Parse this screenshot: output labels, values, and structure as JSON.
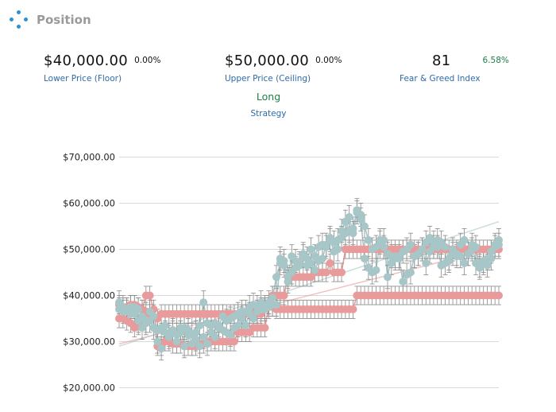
{
  "header": {
    "title": "Position",
    "icon": "four-dots-diamond-icon"
  },
  "metrics": {
    "floor": {
      "value": "$40,000.00",
      "change": "0.00%",
      "label": "Lower Price (Floor)"
    },
    "ceiling": {
      "value": "$50,000.00",
      "change": "0.00%",
      "label": "Upper Price (Ceiling)"
    },
    "fear_greed": {
      "value": "81",
      "change": "6.58%",
      "label": "Fear & Greed Index",
      "change_color": "#1c7f46"
    }
  },
  "strategy": {
    "value": "Long",
    "label": "Strategy",
    "value_color": "#1c7f46"
  },
  "chart_data": {
    "type": "line",
    "ylim": [
      19000,
      72000
    ],
    "yticks": [
      20000,
      30000,
      40000,
      50000,
      60000,
      70000
    ],
    "ytick_labels": [
      "$20,000.00",
      "$30,000.00",
      "$40,000.00",
      "$50,000.00",
      "$60,000.00",
      "$70,000.00"
    ],
    "grid": true,
    "x": [
      0,
      1,
      2,
      3,
      4,
      5,
      6,
      7,
      8,
      9,
      10,
      11,
      12,
      13,
      14,
      15,
      16,
      17,
      18,
      19,
      20,
      21,
      22,
      23,
      24,
      25,
      26,
      27,
      28,
      29,
      30,
      31,
      32,
      33,
      34,
      35,
      36,
      37,
      38,
      39,
      40,
      41,
      42,
      43,
      44,
      45,
      46,
      47,
      48,
      49,
      50,
      51,
      52,
      53,
      54,
      55,
      56,
      57,
      58,
      59,
      60,
      61,
      62,
      63,
      64,
      65,
      66,
      67,
      68,
      69,
      70,
      71,
      72,
      73,
      74,
      75,
      76,
      77,
      78,
      79,
      80,
      81,
      82,
      83,
      84,
      85,
      86,
      87,
      88,
      89,
      90,
      91,
      92,
      93,
      94,
      95,
      96,
      97,
      98,
      99
    ],
    "series": [
      {
        "color": "#e99a9a",
        "error": 2000,
        "values": [
          35000,
          35000,
          34500,
          34000,
          33000,
          33500,
          37000,
          40000,
          40000,
          37000,
          29000,
          29000,
          30000,
          30000,
          29500,
          29500,
          29500,
          29000,
          29000,
          29000,
          29000,
          29500,
          29500,
          30000,
          30000,
          30000,
          30000,
          30000,
          30000,
          30000,
          30000,
          32000,
          32000,
          32000,
          32000,
          33000,
          33000,
          33000,
          33000,
          37500,
          37500,
          37000,
          37000,
          37000,
          37000,
          37000,
          37000,
          37000,
          37000,
          37000,
          37000,
          37000,
          37000,
          37000,
          37000,
          37000,
          37000,
          37000,
          37000,
          37000,
          37000,
          37000,
          40000,
          40000,
          40000,
          40000,
          40000,
          40000,
          40000,
          40000,
          40000,
          40000,
          40000,
          40000,
          40000,
          40000,
          40000,
          40000,
          40000,
          40000,
          40000,
          40000,
          40000,
          40000,
          40000,
          40000,
          40000,
          40000,
          40000,
          40000,
          40000,
          40000,
          40000,
          40000,
          40000,
          40000,
          40000,
          40000,
          40000,
          40000
        ]
      },
      {
        "color": "#e99a9a",
        "error": 2000,
        "values": [
          38000,
          37500,
          37500,
          38000,
          38000,
          37500,
          37000,
          36500,
          36000,
          35500,
          35000,
          36000,
          36000,
          36000,
          36000,
          36000,
          36000,
          36000,
          36000,
          36000,
          36000,
          36000,
          36000,
          36000,
          36000,
          36000,
          36000,
          36000,
          36000,
          36000,
          36000,
          36000,
          36000,
          36000,
          36000,
          36000,
          36000,
          36000,
          37000,
          38000,
          40000,
          40000,
          40000,
          40000,
          44000,
          44000,
          44000,
          44000,
          44000,
          44000,
          44000,
          45000,
          45000,
          45000,
          45000,
          47000,
          45000,
          45000,
          45000,
          50000,
          50000,
          50000,
          50000,
          50000,
          50000,
          50000,
          50000,
          50000,
          50000,
          50000,
          50000,
          50000,
          50000,
          50000,
          50000,
          50000,
          50000,
          50000,
          50000,
          50000,
          50000,
          50000,
          50000,
          50000,
          50000,
          50000,
          50000,
          50000,
          50000,
          50000,
          50000,
          50000,
          50000,
          50000,
          50000,
          50000,
          50000,
          50000,
          50000,
          50000
        ]
      },
      {
        "color": "#a7c6c8",
        "error": 2500,
        "values": [
          37000,
          36500,
          37000,
          36000,
          37500,
          34500,
          33000,
          34000,
          34500,
          33000,
          30000,
          28500,
          32000,
          31000,
          32500,
          30000,
          33000,
          29000,
          31500,
          29500,
          30500,
          29000,
          31000,
          29500,
          32000,
          31000,
          33000,
          32500,
          32000,
          31500,
          33000,
          33500,
          35000,
          33500,
          36000,
          35000,
          36500,
          38500,
          37500,
          38500,
          39500,
          44000,
          47000,
          46500,
          43000,
          45000,
          47500,
          46500,
          48500,
          46500,
          47000,
          45500,
          47500,
          48000,
          51000,
          52000,
          49500,
          52000,
          52500,
          53500,
          57000,
          53500,
          58000,
          57500,
          55000,
          52000,
          50000,
          50500,
          51500,
          50500,
          49000,
          47000,
          48500,
          48500,
          49500,
          50000,
          51000,
          48500,
          49000,
          50000,
          47000,
          49500,
          50500,
          52000,
          51500,
          50500,
          47500,
          49000,
          48500,
          51000,
          52000,
          49000,
          51000,
          47000,
          46500,
          47500,
          48000,
          49500,
          51000,
          52000
        ]
      },
      {
        "color": "#a7c6c8",
        "error": 2500,
        "values": [
          38500,
          37500,
          36500,
          37500,
          36000,
          37000,
          35500,
          34500,
          36500,
          35500,
          32500,
          33000,
          33500,
          31500,
          32000,
          31500,
          32000,
          33000,
          32500,
          31500,
          32000,
          33500,
          38500,
          34000,
          33500,
          34000,
          33500,
          35500,
          34500,
          35000,
          35500,
          36000,
          36500,
          36500,
          37500,
          38000,
          37500,
          37000,
          37000,
          37500,
          38000,
          38000,
          48000,
          47500,
          44000,
          48500,
          46000,
          47000,
          49000,
          48000,
          50000,
          48500,
          50500,
          51000,
          50500,
          52500,
          51500,
          50000,
          54000,
          56000,
          54000,
          54500,
          58500,
          56500,
          48000,
          46000,
          45000,
          45500,
          52000,
          52000,
          44000,
          48500,
          48000,
          48000,
          43000,
          44500,
          45000,
          48500,
          49000,
          50000,
          51500,
          52500,
          51500,
          50500,
          46500,
          47000,
          48000,
          50000,
          49000,
          48500,
          47000,
          49000,
          50000,
          50500,
          46000,
          47000,
          46500,
          48000,
          50500,
          51000
        ]
      }
    ],
    "trendlines": [
      {
        "color": "#e99a9a",
        "from": [
          0,
          29500
        ],
        "to": [
          99,
          50500
        ]
      },
      {
        "color": "#a7c6c8",
        "from": [
          0,
          29000
        ],
        "to": [
          99,
          56000
        ]
      }
    ]
  }
}
